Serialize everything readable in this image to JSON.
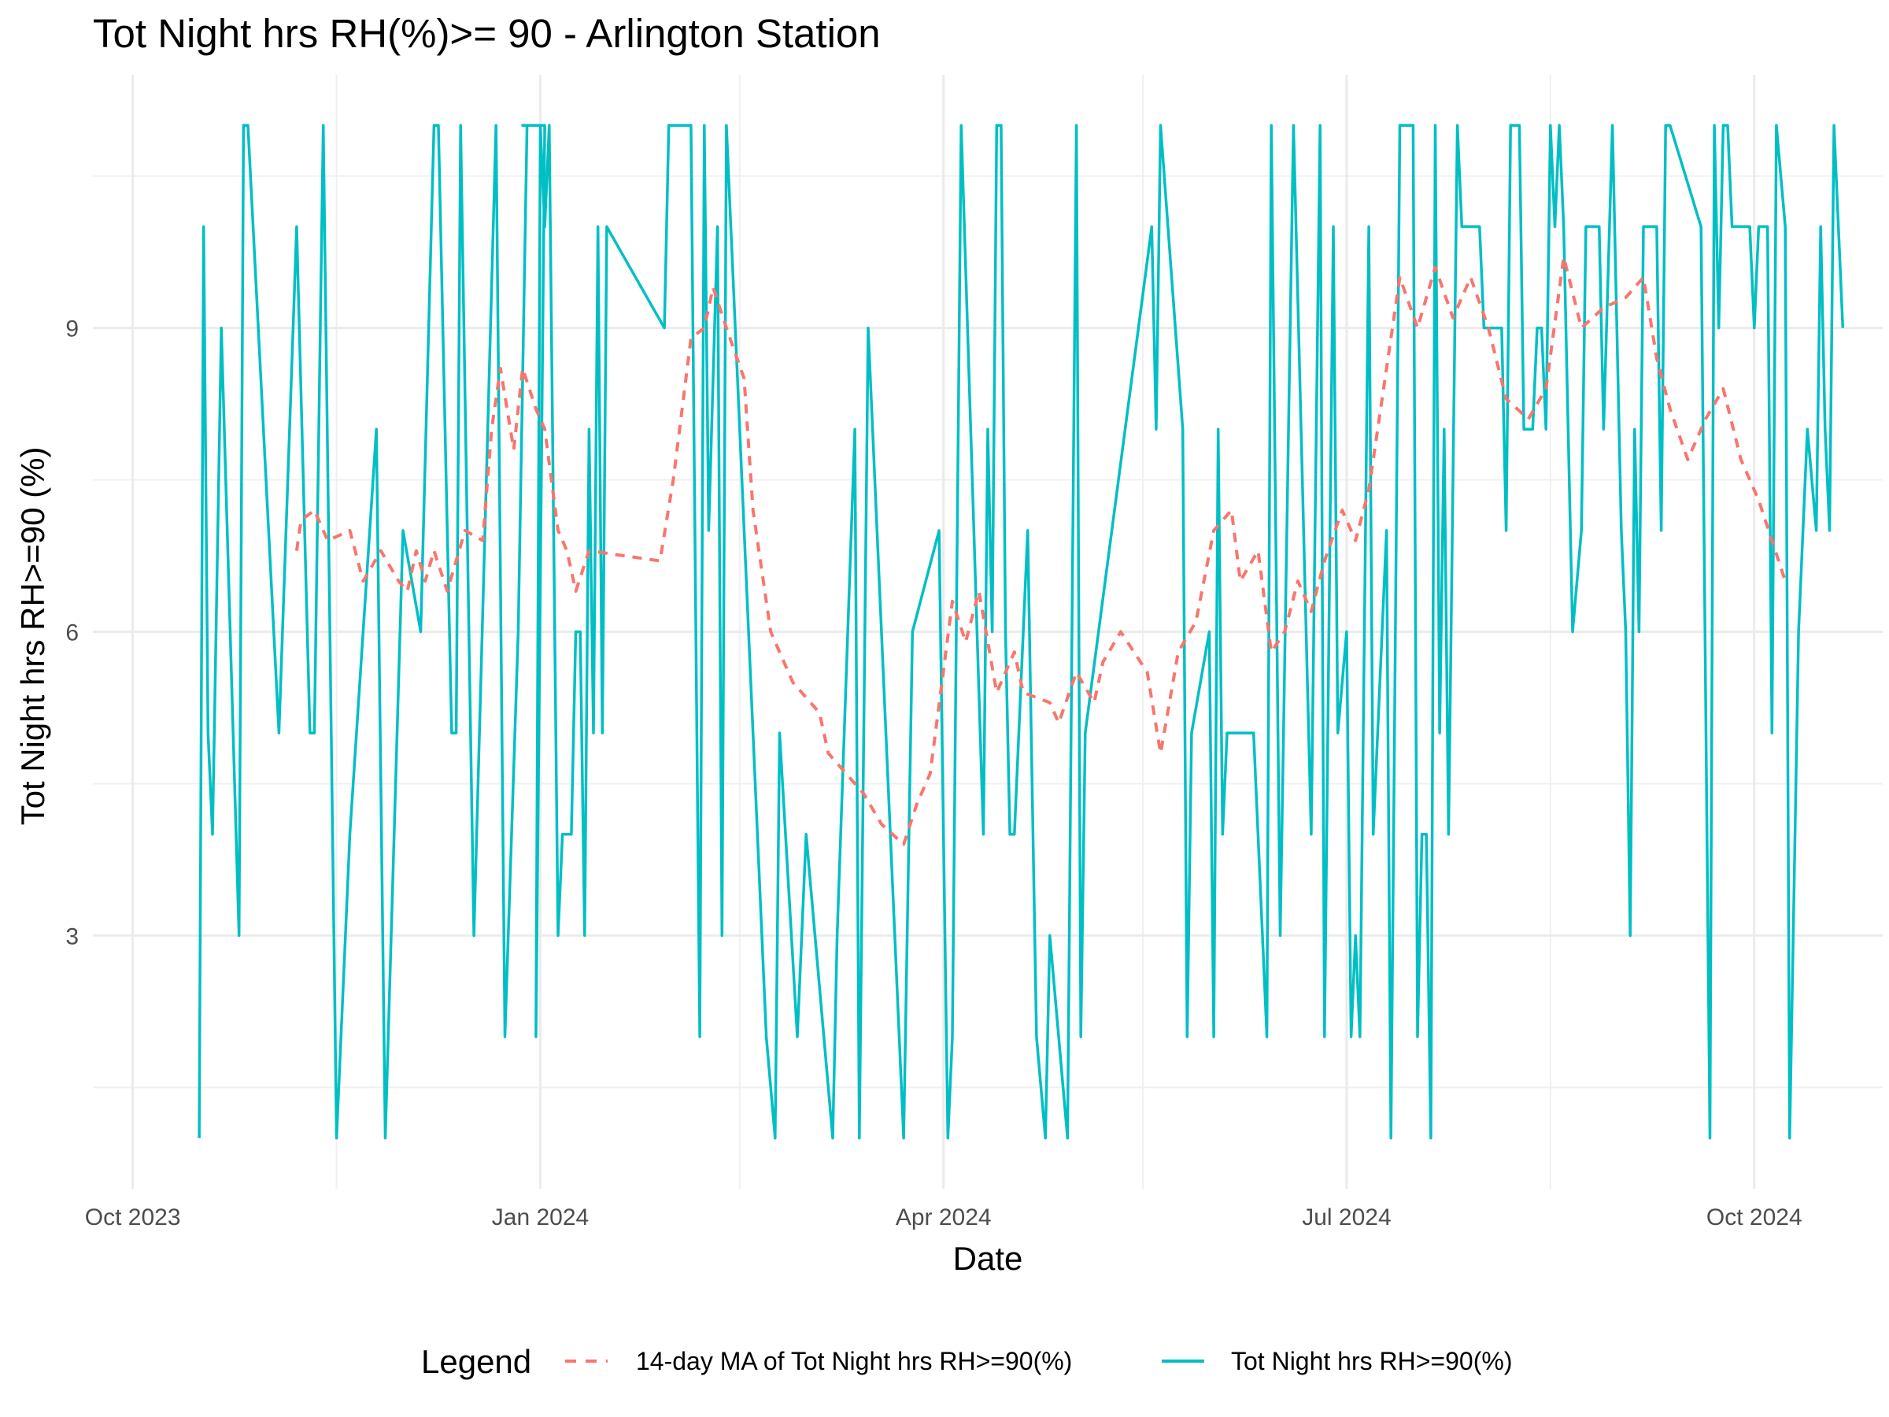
{
  "chart_data": {
    "type": "line",
    "title": "Tot Night hrs RH(%)>= 90 - Arlington Station",
    "xlabel": "Date",
    "ylabel": "Tot Night hrs RH>=90 (%)",
    "x_ticks": [
      "Oct 2023",
      "Jan 2024",
      "Apr 2024",
      "Jul 2024",
      "Oct 2024"
    ],
    "y_ticks": [
      3,
      6,
      9
    ],
    "xlim": [
      "2023-09-22",
      "2024-10-30"
    ],
    "ylim": [
      0.5,
      11.5
    ],
    "grid": true,
    "legend": {
      "title": "Legend",
      "position": "bottom",
      "entries": [
        {
          "label": "14-day MA of Tot Night hrs RH>=90(%)",
          "style": "dashed",
          "color": "#F8766D"
        },
        {
          "label": "Tot Night hrs RH>=90(%)",
          "style": "solid",
          "color": "#00BFC4"
        }
      ]
    },
    "series": [
      {
        "name": "Tot Night hrs RH>=90(%)",
        "color": "#00BFC4",
        "points": [
          [
            "2023-10-16",
            1
          ],
          [
            "2023-10-17",
            10
          ],
          [
            "2023-10-18",
            5
          ],
          [
            "2023-10-19",
            4
          ],
          [
            "2023-10-21",
            9
          ],
          [
            "2023-10-25",
            3
          ],
          [
            "2023-10-26",
            11
          ],
          [
            "2023-10-27",
            11
          ],
          [
            "2023-11-03",
            5
          ],
          [
            "2023-11-07",
            10
          ],
          [
            "2023-11-10",
            5
          ],
          [
            "2023-11-11",
            5
          ],
          [
            "2023-11-13",
            11
          ],
          [
            "2023-11-16",
            1
          ],
          [
            "2023-11-19",
            4
          ],
          [
            "2023-11-25",
            8
          ],
          [
            "2023-11-27",
            1
          ],
          [
            "2023-12-01",
            7
          ],
          [
            "2023-12-05",
            6
          ],
          [
            "2023-12-08",
            11
          ],
          [
            "2023-12-09",
            11
          ],
          [
            "2023-12-12",
            5
          ],
          [
            "2023-12-13",
            5
          ],
          [
            "2023-12-14",
            11
          ],
          [
            "2023-12-17",
            3
          ],
          [
            "2023-12-22",
            11
          ],
          [
            "2023-12-24",
            2
          ],
          [
            "2023-12-27",
            6
          ],
          [
            "2023-12-29",
            11
          ],
          [
            "2024-01-02",
            11
          ],
          [
            "2023-12-28",
            11
          ],
          [
            "2023-12-29",
            11
          ],
          [
            "2024-01-02",
            11
          ],
          [
            "2023-12-31",
            2
          ],
          [
            "2024-01-01",
            11
          ],
          [
            "2024-01-02",
            10
          ],
          [
            "2024-01-03",
            11
          ],
          [
            "2024-01-05",
            3
          ],
          [
            "2024-01-06",
            4
          ],
          [
            "2024-01-08",
            4
          ],
          [
            "2024-01-09",
            6
          ],
          [
            "2024-01-10",
            6
          ],
          [
            "2024-01-11",
            3
          ],
          [
            "2024-01-12",
            8
          ],
          [
            "2024-01-13",
            5
          ],
          [
            "2024-01-14",
            10
          ],
          [
            "2024-01-15",
            5
          ],
          [
            "2024-01-16",
            10
          ],
          [
            "2024-01-29",
            9
          ],
          [
            "2024-01-30",
            11
          ],
          [
            "2024-02-04",
            11
          ],
          [
            "2024-02-06",
            2
          ],
          [
            "2024-02-07",
            11
          ],
          [
            "2024-02-08",
            7
          ],
          [
            "2024-02-10",
            10
          ],
          [
            "2024-02-11",
            3
          ],
          [
            "2024-02-12",
            11
          ],
          [
            "2024-02-21",
            2
          ],
          [
            "2024-02-23",
            1
          ],
          [
            "2024-02-24",
            5
          ],
          [
            "2024-02-28",
            2
          ],
          [
            "2024-03-01",
            4
          ],
          [
            "2024-03-07",
            1
          ],
          [
            "2024-03-08",
            3
          ],
          [
            "2024-03-12",
            8
          ],
          [
            "2024-03-13",
            1
          ],
          [
            "2024-03-15",
            9
          ],
          [
            "2024-03-23",
            1
          ],
          [
            "2024-03-25",
            6
          ],
          [
            "2024-03-31",
            7
          ],
          [
            "2024-04-02",
            1
          ],
          [
            "2024-04-03",
            2
          ],
          [
            "2024-04-05",
            11
          ],
          [
            "2024-04-10",
            4
          ],
          [
            "2024-04-11",
            8
          ],
          [
            "2024-04-12",
            6
          ],
          [
            "2024-04-13",
            11
          ],
          [
            "2024-04-14",
            11
          ],
          [
            "2024-04-15",
            6
          ],
          [
            "2024-04-16",
            4
          ],
          [
            "2024-04-17",
            4
          ],
          [
            "2024-04-20",
            7
          ],
          [
            "2024-04-22",
            2
          ],
          [
            "2024-04-24",
            1
          ],
          [
            "2024-04-25",
            3
          ],
          [
            "2024-04-29",
            1
          ],
          [
            "2024-05-01",
            11
          ],
          [
            "2024-05-02",
            2
          ],
          [
            "2024-05-03",
            5
          ],
          [
            "2024-05-06",
            6
          ],
          [
            "2024-05-18",
            10
          ],
          [
            "2024-05-19",
            8
          ],
          [
            "2024-05-20",
            11
          ],
          [
            "2024-05-25",
            8
          ],
          [
            "2024-05-26",
            2
          ],
          [
            "2024-05-27",
            5
          ],
          [
            "2024-05-31",
            6
          ],
          [
            "2024-06-01",
            2
          ],
          [
            "2024-06-02",
            8
          ],
          [
            "2024-06-03",
            4
          ],
          [
            "2024-06-04",
            5
          ],
          [
            "2024-06-10",
            5
          ],
          [
            "2024-06-13",
            2
          ],
          [
            "2024-06-14",
            11
          ],
          [
            "2024-06-16",
            3
          ],
          [
            "2024-06-19",
            11
          ],
          [
            "2024-06-23",
            4
          ],
          [
            "2024-06-25",
            11
          ],
          [
            "2024-06-26",
            2
          ],
          [
            "2024-06-28",
            10
          ],
          [
            "2024-06-29",
            5
          ],
          [
            "2024-07-01",
            6
          ],
          [
            "2024-07-02",
            2
          ],
          [
            "2024-07-03",
            3
          ],
          [
            "2024-07-04",
            2
          ],
          [
            "2024-07-06",
            10
          ],
          [
            "2024-07-07",
            4
          ],
          [
            "2024-07-10",
            7
          ],
          [
            "2024-07-11",
            1
          ],
          [
            "2024-07-13",
            11
          ],
          [
            "2024-07-16",
            11
          ],
          [
            "2024-07-17",
            2
          ],
          [
            "2024-07-18",
            4
          ],
          [
            "2024-07-19",
            4
          ],
          [
            "2024-07-20",
            1
          ],
          [
            "2024-07-21",
            11
          ],
          [
            "2024-07-22",
            5
          ],
          [
            "2024-07-23",
            8
          ],
          [
            "2024-07-24",
            4
          ],
          [
            "2024-07-26",
            11
          ],
          [
            "2024-07-27",
            10
          ],
          [
            "2024-07-31",
            10
          ],
          [
            "2024-08-01",
            9
          ],
          [
            "2024-08-05",
            9
          ],
          [
            "2024-08-06",
            7
          ],
          [
            "2024-08-07",
            11
          ],
          [
            "2024-08-09",
            11
          ],
          [
            "2024-08-10",
            8
          ],
          [
            "2024-08-12",
            8
          ],
          [
            "2024-08-13",
            9
          ],
          [
            "2024-08-14",
            9
          ],
          [
            "2024-08-15",
            8
          ],
          [
            "2024-08-16",
            11
          ],
          [
            "2024-08-17",
            10
          ],
          [
            "2024-08-18",
            11
          ],
          [
            "2024-08-19",
            10
          ],
          [
            "2024-08-21",
            6
          ],
          [
            "2024-08-23",
            7
          ],
          [
            "2024-08-24",
            10
          ],
          [
            "2024-08-27",
            10
          ],
          [
            "2024-08-28",
            8
          ],
          [
            "2024-08-30",
            11
          ],
          [
            "2024-09-01",
            7
          ],
          [
            "2024-09-02",
            6
          ],
          [
            "2024-09-03",
            3
          ],
          [
            "2024-09-04",
            8
          ],
          [
            "2024-09-05",
            6
          ],
          [
            "2024-09-06",
            10
          ],
          [
            "2024-09-09",
            10
          ],
          [
            "2024-09-10",
            7
          ],
          [
            "2024-09-11",
            11
          ],
          [
            "2024-09-12",
            11
          ],
          [
            "2024-09-19",
            10
          ],
          [
            "2024-09-21",
            1
          ],
          [
            "2024-09-22",
            11
          ],
          [
            "2024-09-23",
            9
          ],
          [
            "2024-09-24",
            11
          ],
          [
            "2024-09-25",
            11
          ],
          [
            "2024-09-26",
            10
          ],
          [
            "2024-09-30",
            10
          ],
          [
            "2024-10-01",
            9
          ],
          [
            "2024-10-02",
            10
          ],
          [
            "2024-10-04",
            10
          ],
          [
            "2024-10-05",
            5
          ],
          [
            "2024-10-06",
            11
          ],
          [
            "2024-10-08",
            10
          ],
          [
            "2024-10-09",
            1
          ],
          [
            "2024-10-11",
            6
          ],
          [
            "2024-10-13",
            8
          ],
          [
            "2024-10-15",
            7
          ],
          [
            "2024-10-16",
            10
          ],
          [
            "2024-10-17",
            8
          ],
          [
            "2024-10-18",
            7
          ],
          [
            "2024-10-19",
            11
          ],
          [
            "2024-10-21",
            9
          ]
        ]
      },
      {
        "name": "14-day MA of Tot Night hrs RH>=90(%)",
        "color": "#F8766D",
        "points": [
          [
            "2023-11-07",
            6.8
          ],
          [
            "2023-11-08",
            7.1
          ],
          [
            "2023-11-11",
            7.2
          ],
          [
            "2023-11-14",
            6.9
          ],
          [
            "2023-11-19",
            7.0
          ],
          [
            "2023-11-22",
            6.5
          ],
          [
            "2023-11-26",
            6.8
          ],
          [
            "2023-11-30",
            6.5
          ],
          [
            "2023-12-02",
            6.4
          ],
          [
            "2023-12-04",
            6.8
          ],
          [
            "2023-12-06",
            6.5
          ],
          [
            "2023-12-08",
            6.8
          ],
          [
            "2023-12-11",
            6.4
          ],
          [
            "2023-12-15",
            7.0
          ],
          [
            "2023-12-19",
            6.9
          ],
          [
            "2023-12-21",
            8.0
          ],
          [
            "2023-12-23",
            8.6
          ],
          [
            "2023-12-26",
            7.8
          ],
          [
            "2023-12-28",
            8.6
          ],
          [
            "2023-12-31",
            8.2
          ],
          [
            "2024-01-02",
            8.0
          ],
          [
            "2024-01-05",
            7.0
          ],
          [
            "2024-01-07",
            6.8
          ],
          [
            "2024-01-09",
            6.4
          ],
          [
            "2024-01-12",
            6.8
          ],
          [
            "2024-01-28",
            6.7
          ],
          [
            "2024-01-31",
            7.5
          ],
          [
            "2024-02-04",
            8.9
          ],
          [
            "2024-02-07",
            9.0
          ],
          [
            "2024-02-09",
            9.4
          ],
          [
            "2024-02-12",
            9.0
          ],
          [
            "2024-02-16",
            8.5
          ],
          [
            "2024-02-18",
            7.2
          ],
          [
            "2024-02-22",
            6.0
          ],
          [
            "2024-02-27",
            5.5
          ],
          [
            "2024-03-04",
            5.2
          ],
          [
            "2024-03-06",
            4.8
          ],
          [
            "2024-03-10",
            4.6
          ],
          [
            "2024-03-14",
            4.4
          ],
          [
            "2024-03-18",
            4.1
          ],
          [
            "2024-03-23",
            3.9
          ],
          [
            "2024-03-26",
            4.3
          ],
          [
            "2024-03-29",
            4.6
          ],
          [
            "2024-04-03",
            6.3
          ],
          [
            "2024-04-06",
            5.9
          ],
          [
            "2024-04-09",
            6.4
          ],
          [
            "2024-04-13",
            5.4
          ],
          [
            "2024-04-17",
            5.8
          ],
          [
            "2024-04-19",
            5.4
          ],
          [
            "2024-04-25",
            5.3
          ],
          [
            "2024-04-27",
            5.1
          ],
          [
            "2024-05-01",
            5.6
          ],
          [
            "2024-05-05",
            5.3
          ],
          [
            "2024-05-07",
            5.7
          ],
          [
            "2024-05-11",
            6.0
          ],
          [
            "2024-05-17",
            5.6
          ],
          [
            "2024-05-20",
            4.8
          ],
          [
            "2024-05-24",
            5.8
          ],
          [
            "2024-05-28",
            6.1
          ],
          [
            "2024-06-01",
            7.0
          ],
          [
            "2024-06-05",
            7.2
          ],
          [
            "2024-06-07",
            6.5
          ],
          [
            "2024-06-11",
            6.8
          ],
          [
            "2024-06-14",
            5.8
          ],
          [
            "2024-06-17",
            6.0
          ],
          [
            "2024-06-20",
            6.5
          ],
          [
            "2024-06-23",
            6.2
          ],
          [
            "2024-06-26",
            6.7
          ],
          [
            "2024-06-30",
            7.2
          ],
          [
            "2024-07-03",
            6.9
          ],
          [
            "2024-07-06",
            7.4
          ],
          [
            "2024-07-10",
            8.6
          ],
          [
            "2024-07-13",
            9.5
          ],
          [
            "2024-07-17",
            9.0
          ],
          [
            "2024-07-21",
            9.6
          ],
          [
            "2024-07-25",
            9.1
          ],
          [
            "2024-07-29",
            9.5
          ],
          [
            "2024-08-02",
            9.0
          ],
          [
            "2024-08-06",
            8.3
          ],
          [
            "2024-08-11",
            8.1
          ],
          [
            "2024-08-15",
            8.4
          ],
          [
            "2024-08-19",
            9.7
          ],
          [
            "2024-08-23",
            9.0
          ],
          [
            "2024-08-28",
            9.2
          ],
          [
            "2024-09-02",
            9.3
          ],
          [
            "2024-09-06",
            9.5
          ],
          [
            "2024-09-09",
            8.7
          ],
          [
            "2024-09-12",
            8.2
          ],
          [
            "2024-09-16",
            7.7
          ],
          [
            "2024-09-20",
            8.1
          ],
          [
            "2024-09-24",
            8.4
          ],
          [
            "2024-09-28",
            7.7
          ],
          [
            "2024-10-02",
            7.3
          ],
          [
            "2024-10-05",
            6.9
          ],
          [
            "2024-10-08",
            6.5
          ]
        ]
      }
    ]
  }
}
